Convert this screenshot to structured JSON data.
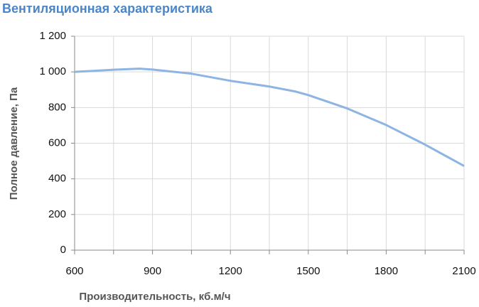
{
  "chart_data": {
    "type": "line",
    "title": "Вентиляционная характеристика",
    "x_label": "Производительность, кб.м/ч",
    "y_label": "Полное  давление, Па",
    "x": [
      600,
      750,
      850,
      900,
      1050,
      1200,
      1350,
      1450,
      1500,
      1650,
      1800,
      1950,
      2100
    ],
    "series": [
      {
        "color": "#8db4e2",
        "values": [
          1000,
          1012,
          1018,
          1013,
          990,
          950,
          918,
          890,
          870,
          795,
          702,
          592,
          472
        ]
      }
    ],
    "xlim": [
      600,
      2100
    ],
    "xticks": [
      600,
      900,
      1200,
      1500,
      1800,
      2100
    ],
    "x_minor_ticks": [
      750,
      1050,
      1350,
      1650,
      1950
    ],
    "ylim": [
      0,
      1200
    ],
    "yticks": [
      0,
      200,
      400,
      600,
      800,
      {
        "value": 1000,
        "label": "1 000"
      },
      {
        "value": 1200,
        "label": "1 200"
      }
    ],
    "grid": true
  }
}
